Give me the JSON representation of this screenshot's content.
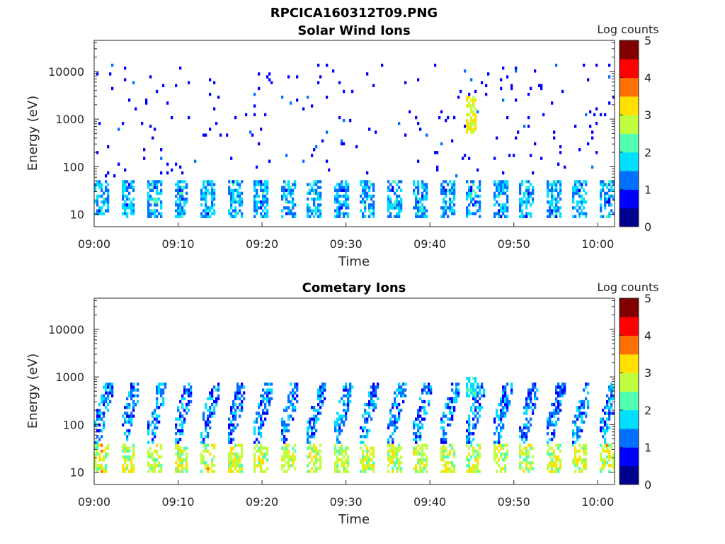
{
  "figure_title": "RPCICA160312T09.PNG",
  "colormap": [
    "#00008f",
    "#0000ff",
    "#0070ff",
    "#00dfff",
    "#50ffaf",
    "#c0ff40",
    "#ffe000",
    "#ff7000",
    "#ff0000",
    "#800000"
  ],
  "chart_data": [
    {
      "type": "heatmap",
      "title": "Solar Wind Ions",
      "xlabel": "Time",
      "ylabel": "Energy (eV)",
      "x_ticks": [
        "09:00",
        "09:10",
        "09:20",
        "09:30",
        "09:40",
        "09:50",
        "10:00"
      ],
      "x_range": [
        "09:00",
        "10:02"
      ],
      "y_scale": "log",
      "y_ticks": [
        "10",
        "100",
        "1000",
        "10000"
      ],
      "y_range": [
        5.5,
        45000
      ],
      "colorbar_label": "Log counts",
      "colorbar_ticks": [
        "0",
        "1",
        "2",
        "3",
        "4",
        "5"
      ],
      "colorbar_range": [
        0,
        5
      ],
      "bands": [
        {
          "energy_range": [
            8,
            50
          ],
          "period_min": 3.17,
          "start_min": 0,
          "count_level": 1.3,
          "note": "periodic energy sweeps"
        },
        {
          "energy_range": [
            60,
            15000
          ],
          "count_level": 0.5,
          "note": "sparse scattered counts"
        },
        {
          "energy_range": [
            500,
            3000
          ],
          "time_min": 45,
          "count_level": 2.7
        }
      ]
    },
    {
      "type": "heatmap",
      "title": "Cometary Ions",
      "xlabel": "Time",
      "ylabel": "Energy (eV)",
      "x_ticks": [
        "09:00",
        "09:10",
        "09:20",
        "09:30",
        "09:40",
        "09:50",
        "10:00"
      ],
      "x_range": [
        "09:00",
        "10:02"
      ],
      "y_scale": "log",
      "y_ticks": [
        "10",
        "100",
        "1000",
        "10000"
      ],
      "y_range": [
        5.5,
        45000
      ],
      "colorbar_label": "Log counts",
      "colorbar_ticks": [
        "0",
        "1",
        "2",
        "3",
        "4",
        "5"
      ],
      "colorbar_range": [
        0,
        5
      ],
      "bands": [
        {
          "energy_range": [
            10,
            40
          ],
          "period_min": 3.17,
          "start_min": 0,
          "count_level": 2.6,
          "note": "dense low-energy cometary ions"
        },
        {
          "energy_range": [
            40,
            800
          ],
          "period_min": 3.17,
          "start_min": 0,
          "count_level": 1.2,
          "note": "rising diagonal streaks"
        },
        {
          "energy_range": [
            400,
            1000
          ],
          "time_min": 45,
          "count_level": 1.5
        }
      ]
    }
  ]
}
